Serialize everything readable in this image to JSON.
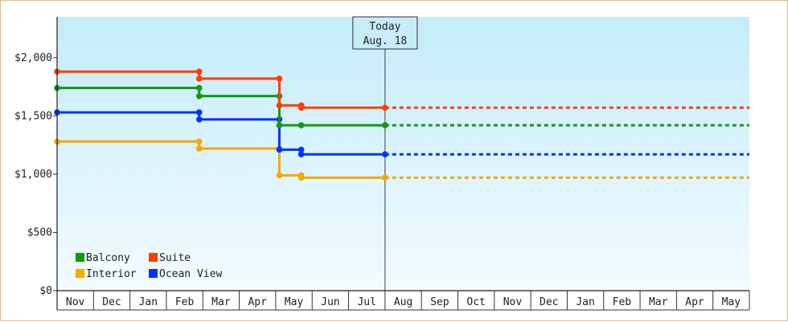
{
  "chart_data": {
    "type": "line",
    "subtype": "step",
    "months": [
      "Nov",
      "Dec",
      "Jan",
      "Feb",
      "Mar",
      "Apr",
      "May",
      "Jun",
      "Jul",
      "Aug",
      "Sep",
      "Oct",
      "Nov",
      "Dec",
      "Jan",
      "Feb",
      "Mar",
      "Apr",
      "May"
    ],
    "y_ticks": [
      {
        "value": 0,
        "label": "$0"
      },
      {
        "value": 500,
        "label": "$500"
      },
      {
        "value": 1000,
        "label": "$1,000"
      },
      {
        "value": 1500,
        "label": "$1,500"
      },
      {
        "value": 2000,
        "label": "$2,000"
      }
    ],
    "ylim": [
      0,
      2350
    ],
    "x_range": [
      0,
      19
    ],
    "grid": false,
    "legend_position": "bottom-left",
    "today": {
      "line1": "Today",
      "line2": "Aug. 18",
      "x": 9.0
    },
    "series": [
      {
        "name": "Suite",
        "color": "#ff3d00",
        "points": [
          [
            0.0,
            1880
          ],
          [
            3.9,
            1880
          ],
          [
            3.9,
            1820
          ],
          [
            6.1,
            1820
          ],
          [
            6.1,
            1590
          ],
          [
            6.7,
            1590
          ],
          [
            6.7,
            1570
          ],
          [
            9.0,
            1570
          ]
        ],
        "projection": 1570
      },
      {
        "name": "Balcony",
        "color": "#119911",
        "points": [
          [
            0.0,
            1740
          ],
          [
            3.9,
            1740
          ],
          [
            3.9,
            1670
          ],
          [
            6.1,
            1670
          ],
          [
            6.1,
            1420
          ],
          [
            6.7,
            1420
          ],
          [
            9.0,
            1420
          ]
        ],
        "projection": 1420
      },
      {
        "name": "Ocean View",
        "color": "#0033ff",
        "points": [
          [
            0.0,
            1530
          ],
          [
            3.9,
            1530
          ],
          [
            3.9,
            1470
          ],
          [
            6.1,
            1470
          ],
          [
            6.1,
            1210
          ],
          [
            6.7,
            1210
          ],
          [
            6.7,
            1170
          ],
          [
            9.0,
            1170
          ]
        ],
        "projection": 1170
      },
      {
        "name": "Interior",
        "color": "#f5a800",
        "points": [
          [
            0.0,
            1280
          ],
          [
            3.9,
            1280
          ],
          [
            3.9,
            1220
          ],
          [
            6.1,
            1220
          ],
          [
            6.1,
            990
          ],
          [
            6.7,
            990
          ],
          [
            6.7,
            970
          ],
          [
            9.0,
            970
          ]
        ],
        "projection": 970
      }
    ],
    "legend": [
      {
        "name": "Balcony",
        "color": "#119911"
      },
      {
        "name": "Suite",
        "color": "#ff3d00"
      },
      {
        "name": "Interior",
        "color": "#f5a800"
      },
      {
        "name": "Ocean View",
        "color": "#0033ff"
      }
    ]
  }
}
